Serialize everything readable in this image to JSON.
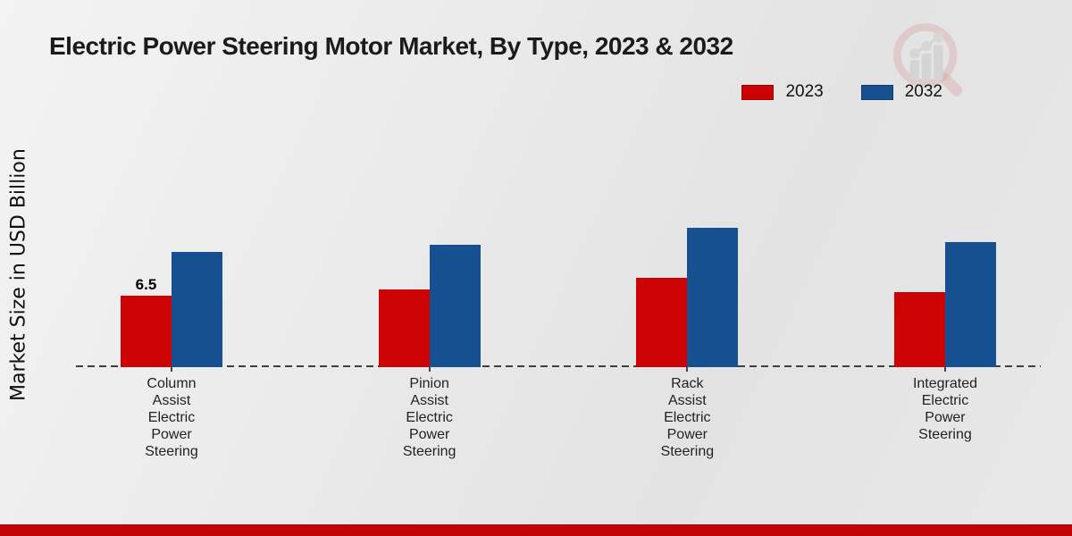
{
  "header": {
    "title": "Electric Power Steering Motor Market, By Type, 2023 & 2032"
  },
  "y_axis_label": "Market Size in USD Billion",
  "legend": {
    "position": "top-right",
    "items": [
      {
        "label": "2023",
        "color": "#cc0304"
      },
      {
        "label": "2032",
        "color": "#165090"
      }
    ]
  },
  "watermark_icon": "magnifier-bar-chart-logo",
  "footer": {
    "stripe_color": "#c10505"
  },
  "colors": {
    "series_2023": "#cc0304",
    "series_2032": "#165090",
    "axis_dash": "#3f3f3f",
    "background": "#e9e9e9"
  },
  "chart_data": {
    "type": "bar",
    "title": "Electric Power Steering Motor Market, By Type, 2023 & 2032",
    "xlabel": "",
    "ylabel": "Market Size in USD Billion",
    "categories": [
      "Column Assist Electric Power Steering",
      "Pinion Assist Electric Power Steering",
      "Rack Assist Electric Power Steering",
      "Integrated Electric Power Steering"
    ],
    "series": [
      {
        "name": "2023",
        "color": "#cc0304",
        "values": [
          6.5,
          7.1,
          8.1,
          6.8
        ],
        "data_labels": [
          "6.5",
          "",
          "",
          ""
        ]
      },
      {
        "name": "2032",
        "color": "#165090",
        "values": [
          10.5,
          11.1,
          12.7,
          11.4
        ],
        "data_labels": [
          "",
          "",
          "",
          ""
        ]
      }
    ],
    "ylim": [
      0,
      15
    ],
    "grid": false,
    "y_ticks_visible": false,
    "baseline_style": "dashed",
    "legend_position": "top-right"
  }
}
